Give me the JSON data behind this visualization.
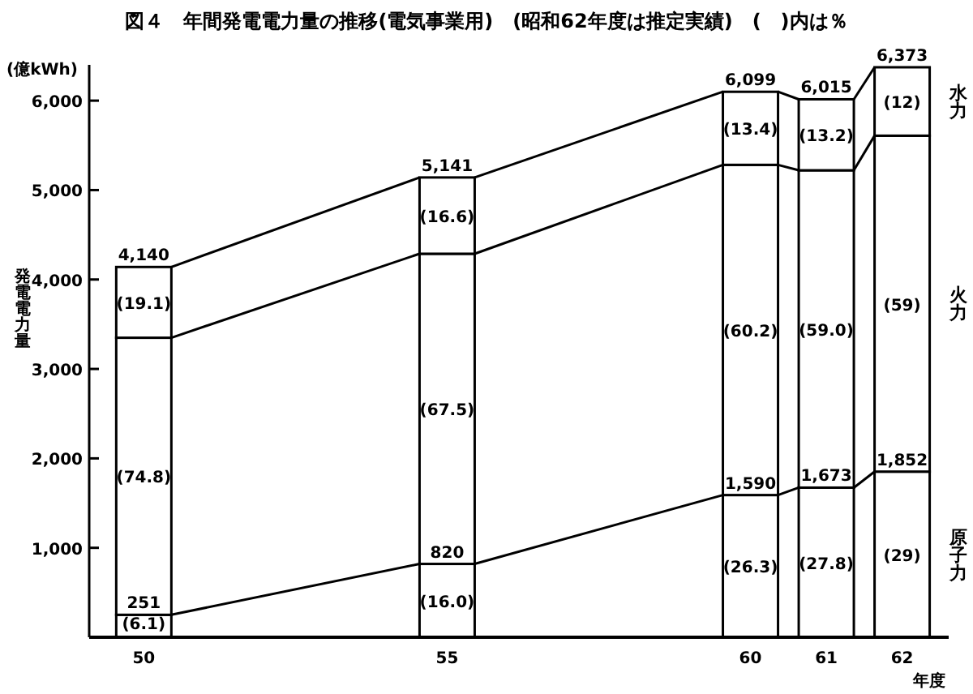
{
  "chart_data": {
    "type": "bar",
    "stacked": true,
    "title": "図４　年間発電電力量の推移(電気事業用)　(昭和62年度は推定実績)　(　)内は％",
    "ylabel": "発電電力量",
    "xlabel": "年度",
    "categories": [
      "50",
      "55",
      "60",
      "61",
      "62"
    ],
    "series": [
      {
        "name": "原子力",
        "color": "#ffffff",
        "values": [
          251,
          820,
          1590,
          1673,
          1852
        ]
      },
      {
        "name": "火力",
        "color": "#ffffff",
        "values": [
          3098,
          3468,
          3692,
          3548,
          3756
        ]
      },
      {
        "name": "水力",
        "color": "#ffffff",
        "values": [
          791,
          853,
          817,
          794,
          765
        ]
      }
    ],
    "totals": [
      "4,140",
      "5,141",
      "6,099",
      "6,015",
      "6,373"
    ],
    "annotations": [
      "(億kWh)",
      {
        "text": "251",
        "x": "50",
        "y": 251
      },
      {
        "text": "820",
        "x": "55",
        "y": 820
      },
      {
        "text": "1,590",
        "x": "60",
        "y": 1590
      },
      {
        "text": "1,673",
        "x": "61",
        "y": 1673
      },
      {
        "text": "1,852",
        "x": "62",
        "y": 1852
      },
      {
        "text": "(6.1)",
        "x": "50",
        "y": 20
      },
      "(16.0)",
      "(26.3)",
      "(27.8)",
      "(29)",
      "(74.8)",
      "(67.5)",
      "(60.2)",
      "(59.0)",
      "(59)",
      "(19.1)",
      "(16.6)",
      "(13.4)",
      "(13.2)",
      "(12)"
    ],
    "ylim": [
      0,
      6400
    ],
    "yticks": [
      {
        "value": 1000,
        "label": "1,000"
      },
      {
        "value": 2000,
        "label": "2,000"
      },
      {
        "value": 3000,
        "label": "3,000"
      },
      {
        "value": 4000,
        "label": "4,000"
      },
      {
        "value": 5000,
        "label": "5,000"
      },
      {
        "value": 6000,
        "label": "6,000"
      }
    ],
    "legend": "right",
    "grid": false
  }
}
